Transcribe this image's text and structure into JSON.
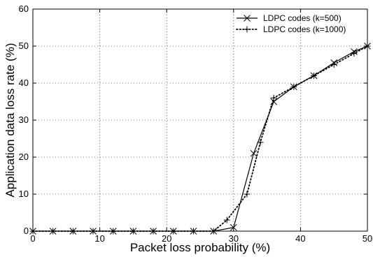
{
  "chart_data": {
    "type": "line",
    "xlabel": "Packet loss probability (%)",
    "ylabel": "Application data loss rate (%)",
    "xlim": [
      0,
      50
    ],
    "ylim": [
      0,
      60
    ],
    "xticks": [
      0,
      10,
      20,
      30,
      40,
      50
    ],
    "yticks": [
      0,
      10,
      20,
      30,
      40,
      50,
      60
    ],
    "grid": true,
    "grid_style": "dotted",
    "legend_position": "top-right",
    "series": [
      {
        "name": "LDPC codes (k=500)",
        "line_style": "solid",
        "marker": "x",
        "color": "#000000",
        "x": [
          0,
          3,
          6,
          9,
          12,
          15,
          18,
          21,
          24,
          27,
          30,
          33,
          36,
          39,
          42,
          45,
          48,
          50
        ],
        "y": [
          0,
          0,
          0,
          0,
          0,
          0,
          0,
          0,
          0,
          0,
          1,
          21,
          35,
          39,
          42,
          45.5,
          48.5,
          50
        ]
      },
      {
        "name": "LDPC codes (k=1000)",
        "line_style": "dotted",
        "marker": "+",
        "color": "#000000",
        "x": [
          0,
          3,
          6,
          9,
          12,
          15,
          18,
          21,
          24,
          27,
          29,
          32,
          34,
          36,
          39,
          42,
          45,
          48,
          50
        ],
        "y": [
          0,
          0,
          0,
          0,
          0,
          0,
          0,
          0,
          0,
          0,
          3,
          10,
          24,
          36,
          39,
          42,
          45,
          48,
          50
        ]
      }
    ]
  }
}
